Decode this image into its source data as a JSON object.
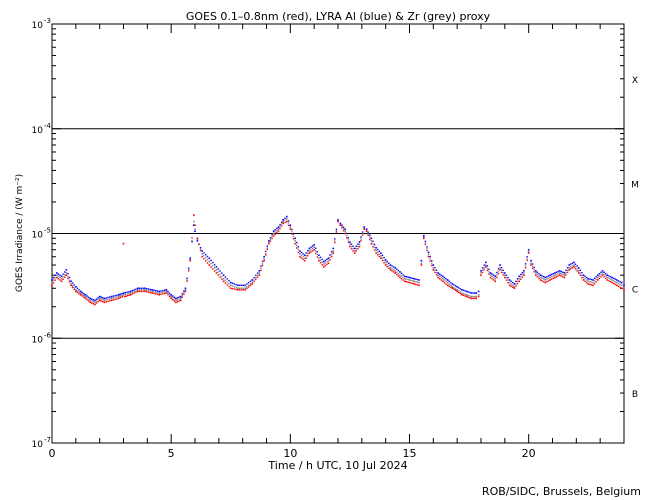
{
  "chart_data": {
    "type": "line",
    "title": "GOES 0.1–0.8nm (red), LYRA Al (blue) & Zr (grey) proxy",
    "xlabel": "Time / h UTC, 10 Jul 2024",
    "ylabel": "GOES Irradiance / (W m⁻²)",
    "y_scale": "log",
    "xlim": [
      0,
      24
    ],
    "ylim": [
      1e-07,
      0.001
    ],
    "x_ticks": [
      0,
      5,
      10,
      15,
      20
    ],
    "y_ticks": [
      {
        "value": 0.001,
        "base": "10",
        "exp": "-3"
      },
      {
        "value": 0.0001,
        "base": "10",
        "exp": "-4"
      },
      {
        "value": 1e-05,
        "base": "10",
        "exp": "-5"
      },
      {
        "value": 1e-06,
        "base": "10",
        "exp": "-6"
      },
      {
        "value": 1e-07,
        "base": "10",
        "exp": "-7"
      }
    ],
    "flare_class_lines": [
      0.0001,
      1e-05,
      1e-06
    ],
    "flare_classes": [
      {
        "label": "X",
        "y": 0.0003
      },
      {
        "label": "M",
        "y": 3e-05
      },
      {
        "label": "C",
        "y": 3e-06
      },
      {
        "label": "B",
        "y": 3e-07
      }
    ],
    "series": [
      {
        "name": "GOES 0.1–0.8nm",
        "color": "#ff0000",
        "x": [
          0,
          0.2,
          0.4,
          0.6,
          0.8,
          1.0,
          1.2,
          1.4,
          1.6,
          1.8,
          2.0,
          2.2,
          2.5,
          2.8,
          2.95,
          3.0,
          3.05,
          3.3,
          3.6,
          3.9,
          4.2,
          4.5,
          4.8,
          5.0,
          5.2,
          5.4,
          5.6,
          5.8,
          5.95,
          6.0,
          6.1,
          6.3,
          6.6,
          6.9,
          7.2,
          7.5,
          7.8,
          8.1,
          8.4,
          8.7,
          8.9,
          9.1,
          9.3,
          9.5,
          9.7,
          9.85,
          10.0,
          10.2,
          10.4,
          10.6,
          10.8,
          11.0,
          11.2,
          11.4,
          11.6,
          11.8,
          12.0,
          12.1,
          12.3,
          12.5,
          12.7,
          12.9,
          13.1,
          13.2,
          13.4,
          13.6,
          13.8,
          14.0,
          14.2,
          14.4,
          14.6,
          14.8,
          15.0,
          15.2,
          15.4,
          15.5,
          15.6,
          15.8,
          16.0,
          16.2,
          16.4,
          16.6,
          16.8,
          17.0,
          17.2,
          17.4,
          17.6,
          17.8,
          17.9,
          18.0,
          18.2,
          18.4,
          18.6,
          18.8,
          19.0,
          19.2,
          19.4,
          19.6,
          19.8,
          20.0,
          20.1,
          20.3,
          20.5,
          20.7,
          20.9,
          21.1,
          21.3,
          21.5,
          21.7,
          21.9,
          22.1,
          22.3,
          22.5,
          22.7,
          22.9,
          23.1,
          23.3,
          23.5,
          23.7,
          23.9,
          24.0
        ],
        "y": [
          3.2e-06,
          3.8e-06,
          3.5e-06,
          4e-06,
          3.2e-06,
          2.8e-06,
          2.6e-06,
          2.4e-06,
          2.2e-06,
          2.1e-06,
          2.3e-06,
          2.2e-06,
          2.3e-06,
          2.4e-06,
          2.5e-06,
          8e-06,
          2.5e-06,
          2.6e-06,
          2.8e-06,
          2.8e-06,
          2.7e-06,
          2.6e-06,
          2.7e-06,
          2.4e-06,
          2.2e-06,
          2.3e-06,
          2.8e-06,
          5.5e-06,
          1.5e-05,
          1.2e-05,
          9e-06,
          6e-06,
          5e-06,
          4.2e-06,
          3.5e-06,
          3e-06,
          2.9e-06,
          2.9e-06,
          3.3e-06,
          4e-06,
          5.5e-06,
          8e-06,
          9.5e-06,
          1.05e-05,
          1.25e-05,
          1.3e-05,
          1.1e-05,
          8e-06,
          6e-06,
          5.5e-06,
          6.5e-06,
          7e-06,
          5.5e-06,
          4.8e-06,
          5.2e-06,
          6.5e-06,
          1.3e-05,
          1.2e-05,
          1e-05,
          7.5e-06,
          6.5e-06,
          7.5e-06,
          1.1e-05,
          1.05e-05,
          8e-06,
          6.5e-06,
          5.8e-06,
          5e-06,
          4.5e-06,
          4.2e-06,
          3.8e-06,
          3.5e-06,
          3.4e-06,
          3.3e-06,
          3.2e-06,
          5e-06,
          9e-06,
          6e-06,
          4.5e-06,
          3.8e-06,
          3.5e-06,
          3.2e-06,
          3e-06,
          2.8e-06,
          2.6e-06,
          2.5e-06,
          2.4e-06,
          2.4e-06,
          2.5e-06,
          4e-06,
          4.8e-06,
          3.8e-06,
          3.5e-06,
          4.5e-06,
          3.8e-06,
          3.2e-06,
          3e-06,
          3.5e-06,
          4e-06,
          6.5e-06,
          5e-06,
          4e-06,
          3.6e-06,
          3.4e-06,
          3.6e-06,
          3.8e-06,
          4e-06,
          3.8e-06,
          4.5e-06,
          4.8e-06,
          4.2e-06,
          3.6e-06,
          3.3e-06,
          3.2e-06,
          3.6e-06,
          4e-06,
          3.6e-06,
          3.4e-06,
          3.2e-06,
          3e-06,
          2.9e-06
        ]
      },
      {
        "name": "LYRA Al",
        "color": "#0000ff",
        "x": [
          0,
          0.2,
          0.4,
          0.6,
          0.8,
          1.0,
          1.2,
          1.4,
          1.6,
          1.8,
          2.0,
          2.2,
          2.5,
          2.8,
          3.0,
          3.3,
          3.6,
          3.9,
          4.2,
          4.5,
          4.8,
          5.0,
          5.2,
          5.4,
          5.6,
          5.8,
          5.95,
          6.0,
          6.1,
          6.3,
          6.6,
          6.9,
          7.2,
          7.5,
          7.8,
          8.1,
          8.4,
          8.7,
          8.9,
          9.1,
          9.3,
          9.5,
          9.7,
          9.85,
          10.0,
          10.2,
          10.4,
          10.6,
          10.8,
          11.0,
          11.2,
          11.4,
          11.6,
          11.8,
          12.0,
          12.1,
          12.3,
          12.5,
          12.7,
          12.9,
          13.1,
          13.2,
          13.4,
          13.6,
          13.8,
          14.0,
          14.2,
          14.4,
          14.6,
          14.8,
          15.0,
          15.2,
          15.4,
          15.5,
          15.6,
          15.8,
          16.0,
          16.2,
          16.4,
          16.6,
          16.8,
          17.0,
          17.2,
          17.4,
          17.6,
          17.8,
          17.9,
          18.0,
          18.2,
          18.4,
          18.6,
          18.8,
          19.0,
          19.2,
          19.4,
          19.6,
          19.8,
          20.0,
          20.1,
          20.3,
          20.5,
          20.7,
          20.9,
          21.1,
          21.3,
          21.5,
          21.7,
          21.9,
          22.1,
          22.3,
          22.5,
          22.7,
          22.9,
          23.1,
          23.3,
          23.5,
          23.7,
          23.9,
          24.0
        ],
        "y": [
          3.6e-06,
          4.2e-06,
          3.9e-06,
          4.5e-06,
          3.5e-06,
          3.1e-06,
          2.8e-06,
          2.6e-06,
          2.4e-06,
          2.3e-06,
          2.5e-06,
          2.4e-06,
          2.5e-06,
          2.6e-06,
          2.7e-06,
          2.8e-06,
          3e-06,
          3e-06,
          2.9e-06,
          2.8e-06,
          2.9e-06,
          2.6e-06,
          2.4e-06,
          2.5e-06,
          3e-06,
          5.8e-06,
          1.2e-05,
          1.05e-05,
          8.5e-06,
          6.8e-06,
          5.8e-06,
          4.8e-06,
          4e-06,
          3.4e-06,
          3.2e-06,
          3.2e-06,
          3.6e-06,
          4.4e-06,
          6e-06,
          8.5e-06,
          1.05e-05,
          1.15e-05,
          1.35e-05,
          1.45e-05,
          1.2e-05,
          9e-06,
          6.8e-06,
          6.2e-06,
          7.2e-06,
          7.8e-06,
          6.2e-06,
          5.4e-06,
          5.8e-06,
          7.2e-06,
          1.35e-05,
          1.25e-05,
          1.1e-05,
          8.3e-06,
          7.2e-06,
          8.3e-06,
          1.15e-05,
          1.1e-05,
          9e-06,
          7.3e-06,
          6.5e-06,
          5.6e-06,
          5e-06,
          4.7e-06,
          4.3e-06,
          3.9e-06,
          3.8e-06,
          3.7e-06,
          3.6e-06,
          5.5e-06,
          9.5e-06,
          6.6e-06,
          5e-06,
          4.2e-06,
          3.9e-06,
          3.6e-06,
          3.3e-06,
          3.1e-06,
          2.9e-06,
          2.8e-06,
          2.7e-06,
          2.7e-06,
          2.8e-06,
          4.4e-06,
          5.3e-06,
          4.2e-06,
          3.9e-06,
          5e-06,
          4.2e-06,
          3.6e-06,
          3.3e-06,
          3.9e-06,
          4.4e-06,
          7e-06,
          5.5e-06,
          4.4e-06,
          4e-06,
          3.8e-06,
          4e-06,
          4.2e-06,
          4.4e-06,
          4.2e-06,
          5e-06,
          5.3e-06,
          4.7e-06,
          4e-06,
          3.7e-06,
          3.6e-06,
          4e-06,
          4.4e-06,
          4e-06,
          3.8e-06,
          3.6e-06,
          3.4e-06,
          3.2e-06
        ]
      },
      {
        "name": "LYRA Zr",
        "color": "#888888",
        "x": [
          0,
          0.2,
          0.4,
          0.6,
          0.8,
          1.0,
          1.2,
          1.4,
          1.6,
          1.8,
          2.0,
          2.2,
          2.5,
          2.8,
          3.0,
          3.3,
          3.6,
          3.9,
          4.2,
          4.5,
          4.8,
          5.0,
          5.2,
          5.4,
          5.6,
          5.8,
          5.95,
          6.0,
          6.1,
          6.3,
          6.6,
          6.9,
          7.2,
          7.5,
          7.8,
          8.1,
          8.4,
          8.7,
          8.9,
          9.1,
          9.3,
          9.5,
          9.7,
          9.85,
          10.0,
          10.2,
          10.4,
          10.6,
          10.8,
          11.0,
          11.2,
          11.4,
          11.6,
          11.8,
          12.0,
          12.1,
          12.3,
          12.5,
          12.7,
          12.9,
          13.1,
          13.2,
          13.4,
          13.6,
          13.8,
          14.0,
          14.2,
          14.4,
          14.6,
          14.8,
          15.0,
          15.2,
          15.4,
          15.5,
          15.6,
          15.8,
          16.0,
          16.2,
          16.4,
          16.6,
          16.8,
          17.0,
          17.2,
          17.4,
          17.6,
          17.8,
          17.9,
          18.0,
          18.2,
          18.4,
          18.6,
          18.8,
          19.0,
          19.2,
          19.4,
          19.6,
          19.8,
          20.0,
          20.1,
          20.3,
          20.5,
          20.7,
          20.9,
          21.1,
          21.3,
          21.5,
          21.7,
          21.9,
          22.1,
          22.3,
          22.5,
          22.7,
          22.9,
          23.1,
          23.3,
          23.5,
          23.7,
          23.9,
          24.0
        ],
        "y": [
          3.4e-06,
          4e-06,
          3.7e-06,
          4.2e-06,
          3.3e-06,
          2.9e-06,
          2.7e-06,
          2.5e-06,
          2.3e-06,
          2.2e-06,
          2.4e-06,
          2.3e-06,
          2.4e-06,
          2.5e-06,
          2.6e-06,
          2.7e-06,
          2.9e-06,
          2.9e-06,
          2.8e-06,
          2.7e-06,
          2.8e-06,
          2.5e-06,
          2.3e-06,
          2.4e-06,
          2.9e-06,
          5.6e-06,
          1.3e-05,
          1.1e-05,
          8.8e-06,
          6.4e-06,
          5.4e-06,
          4.5e-06,
          3.7e-06,
          3.2e-06,
          3e-06,
          3e-06,
          3.4e-06,
          4.2e-06,
          5.7e-06,
          8.2e-06,
          1e-05,
          1.1e-05,
          1.3e-05,
          1.38e-05,
          1.15e-05,
          8.5e-06,
          6.4e-06,
          5.8e-06,
          6.8e-06,
          7.4e-06,
          5.8e-06,
          5.1e-06,
          5.5e-06,
          6.8e-06,
          1.32e-05,
          1.22e-05,
          1.05e-05,
          7.9e-06,
          6.8e-06,
          7.9e-06,
          1.12e-05,
          1.07e-05,
          8.5e-06,
          6.9e-06,
          6.1e-06,
          5.3e-06,
          4.7e-06,
          4.4e-06,
          4e-06,
          3.7e-06,
          3.6e-06,
          3.5e-06,
          3.4e-06,
          5.2e-06,
          9.2e-06,
          6.3e-06,
          4.7e-06,
          4e-06,
          3.7e-06,
          3.4e-06,
          3.1e-06,
          2.9e-06,
          2.7e-06,
          2.6e-06,
          2.5e-06,
          2.5e-06,
          2.6e-06,
          4.2e-06,
          5e-06,
          4e-06,
          3.7e-06,
          4.7e-06,
          4e-06,
          3.4e-06,
          3.1e-06,
          3.7e-06,
          4.2e-06,
          6.7e-06,
          5.2e-06,
          4.2e-06,
          3.8e-06,
          3.6e-06,
          3.8e-06,
          4e-06,
          4.2e-06,
          4e-06,
          4.7e-06,
          5e-06,
          4.4e-06,
          3.8e-06,
          3.5e-06,
          3.4e-06,
          3.8e-06,
          4.2e-06,
          3.8e-06,
          3.6e-06,
          3.4e-06,
          3.2e-06,
          3e-06
        ]
      }
    ],
    "credit": "ROB/SIDC, Brussels, Belgium"
  }
}
